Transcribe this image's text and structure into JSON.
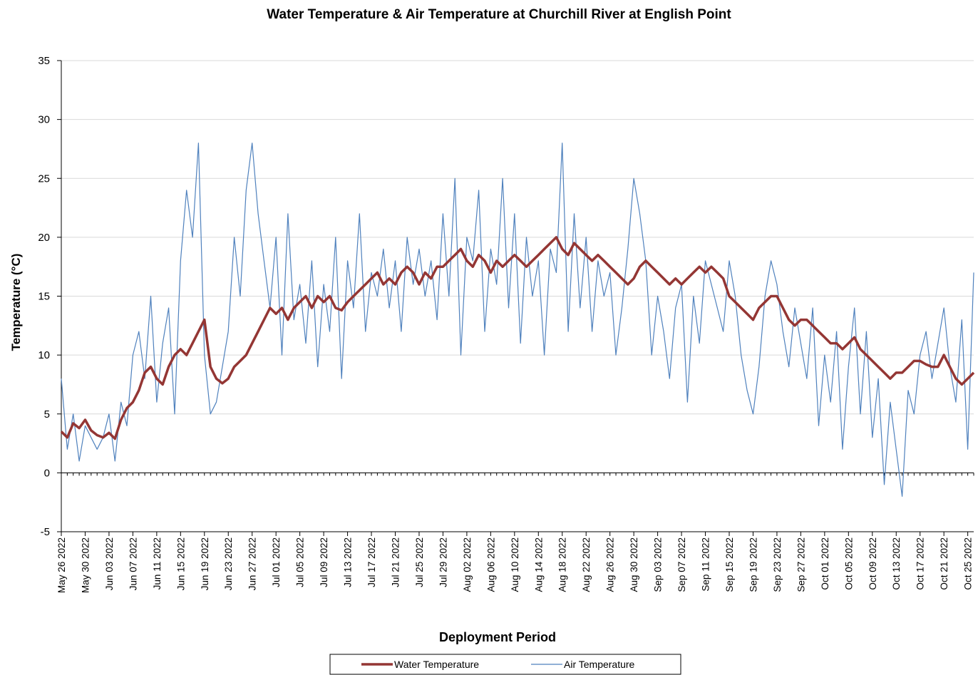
{
  "chart_data": {
    "type": "line",
    "title": "Water Temperature & Air  Temperature at Churchill River at English Point",
    "xlabel": "Deployment Period",
    "ylabel": "Temperature (°C)",
    "ylim": [
      -5,
      35
    ],
    "yticks": [
      -5,
      0,
      5,
      10,
      15,
      20,
      25,
      30,
      35
    ],
    "grid": true,
    "legend": "bottom",
    "categories": [
      "May 26 2022",
      null,
      null,
      null,
      "May 30 2022",
      null,
      null,
      null,
      "Jun 03 2022",
      null,
      null,
      null,
      "Jun 07 2022",
      null,
      null,
      null,
      "Jun 11 2022",
      null,
      null,
      null,
      "Jun 15 2022",
      null,
      null,
      null,
      "Jun 19 2022",
      null,
      null,
      null,
      "Jun 23 2022",
      null,
      null,
      null,
      "Jun 27 2022",
      null,
      null,
      null,
      "Jul 01 2022",
      null,
      null,
      null,
      "Jul 05 2022",
      null,
      null,
      null,
      "Jul 09 2022",
      null,
      null,
      null,
      "Jul 13 2022",
      null,
      null,
      null,
      "Jul 17 2022",
      null,
      null,
      null,
      "Jul 21 2022",
      null,
      null,
      null,
      "Jul 25 2022",
      null,
      null,
      null,
      "Jul 29 2022",
      null,
      null,
      null,
      "Aug 02 2022",
      null,
      null,
      null,
      "Aug 06 2022",
      null,
      null,
      null,
      "Aug 10 2022",
      null,
      null,
      null,
      "Aug 14 2022",
      null,
      null,
      null,
      "Aug 18 2022",
      null,
      null,
      null,
      "Aug 22 2022",
      null,
      null,
      null,
      "Aug 26 2022",
      null,
      null,
      null,
      "Aug 30 2022",
      null,
      null,
      null,
      "Sep 03 2022",
      null,
      null,
      null,
      "Sep 07 2022",
      null,
      null,
      null,
      "Sep 11 2022",
      null,
      null,
      null,
      "Sep 15 2022",
      null,
      null,
      null,
      "Sep 19 2022",
      null,
      null,
      null,
      "Sep 23 2022",
      null,
      null,
      null,
      "Sep 27 2022",
      null,
      null,
      null,
      "Oct 01 2022",
      null,
      null,
      null,
      "Oct 05 2022",
      null,
      null,
      null,
      "Oct 09 2022",
      null,
      null,
      null,
      "Oct 13 2022",
      null,
      null,
      null,
      "Oct 17 2022",
      null,
      null,
      null,
      "Oct 21 2022",
      null,
      null,
      null,
      "Oct 25 2022",
      null
    ],
    "series": [
      {
        "name": "Water Temperature",
        "color": "#943634",
        "values": [
          3.5,
          3.0,
          4.2,
          3.8,
          4.5,
          3.6,
          3.2,
          3.0,
          3.4,
          2.9,
          4.5,
          5.5,
          6,
          7,
          8.5,
          9,
          8,
          7.5,
          9,
          10,
          10.5,
          10,
          11,
          12,
          13,
          9,
          8,
          7.6,
          8,
          9,
          9.5,
          10,
          11,
          12,
          13,
          14,
          13.5,
          14,
          13,
          14,
          14.5,
          15,
          14,
          15,
          14.5,
          15,
          14,
          13.8,
          14.5,
          15,
          15.5,
          16,
          16.5,
          17,
          16,
          16.5,
          16,
          17,
          17.5,
          17,
          16,
          17,
          16.5,
          17.5,
          17.5,
          18,
          18.5,
          19,
          18,
          17.5,
          18.5,
          18,
          17,
          18,
          17.5,
          18,
          18.5,
          18,
          17.5,
          18,
          18.5,
          19,
          19.5,
          20,
          19,
          18.5,
          19.5,
          19,
          18.5,
          18,
          18.5,
          18,
          17.5,
          17,
          16.5,
          16,
          16.5,
          17.5,
          18,
          17.5,
          17,
          16.5,
          16,
          16.5,
          16,
          16.5,
          17,
          17.5,
          17,
          17.5,
          17,
          16.5,
          15,
          14.5,
          14,
          13.5,
          13,
          14,
          14.5,
          15,
          15,
          14,
          13,
          12.5,
          13,
          13,
          12.5,
          12,
          11.5,
          11,
          11,
          10.5,
          11,
          11.5,
          10.5,
          10,
          9.5,
          9,
          8.5,
          8,
          8.5,
          8.5,
          9,
          9.5,
          9.5,
          9.2,
          9,
          9,
          10,
          9,
          8,
          7.5,
          8,
          8.5
        ]
      },
      {
        "name": "Air Temperature",
        "color": "#4f81bd",
        "values": [
          8,
          2,
          5,
          1,
          4,
          3,
          2,
          3,
          5,
          1,
          6,
          4,
          10,
          12,
          8,
          15,
          6,
          11,
          14,
          5,
          18,
          24,
          20,
          28,
          10,
          5,
          6,
          9,
          12,
          20,
          15,
          24,
          28,
          22,
          18,
          14,
          20,
          10,
          22,
          13,
          16,
          11,
          18,
          9,
          16,
          12,
          20,
          8,
          18,
          14,
          22,
          12,
          17,
          15,
          19,
          14,
          18,
          12,
          20,
          16,
          19,
          15,
          18,
          13,
          22,
          15,
          25,
          10,
          20,
          18,
          24,
          12,
          19,
          16,
          25,
          14,
          22,
          11,
          20,
          15,
          18,
          10,
          19,
          17,
          28,
          12,
          22,
          14,
          20,
          12,
          18,
          15,
          17,
          10,
          14,
          19,
          25,
          22,
          18,
          10,
          15,
          12,
          8,
          14,
          16,
          6,
          15,
          11,
          18,
          16,
          14,
          12,
          18,
          15,
          10,
          7,
          5,
          9,
          15,
          18,
          16,
          12,
          9,
          14,
          11,
          8,
          14,
          4,
          10,
          6,
          12,
          2,
          9,
          14,
          5,
          12,
          3,
          8,
          -1,
          6,
          2,
          -2,
          7,
          5,
          10,
          12,
          8,
          11,
          14,
          9,
          6,
          13,
          2,
          17
        ]
      }
    ]
  }
}
